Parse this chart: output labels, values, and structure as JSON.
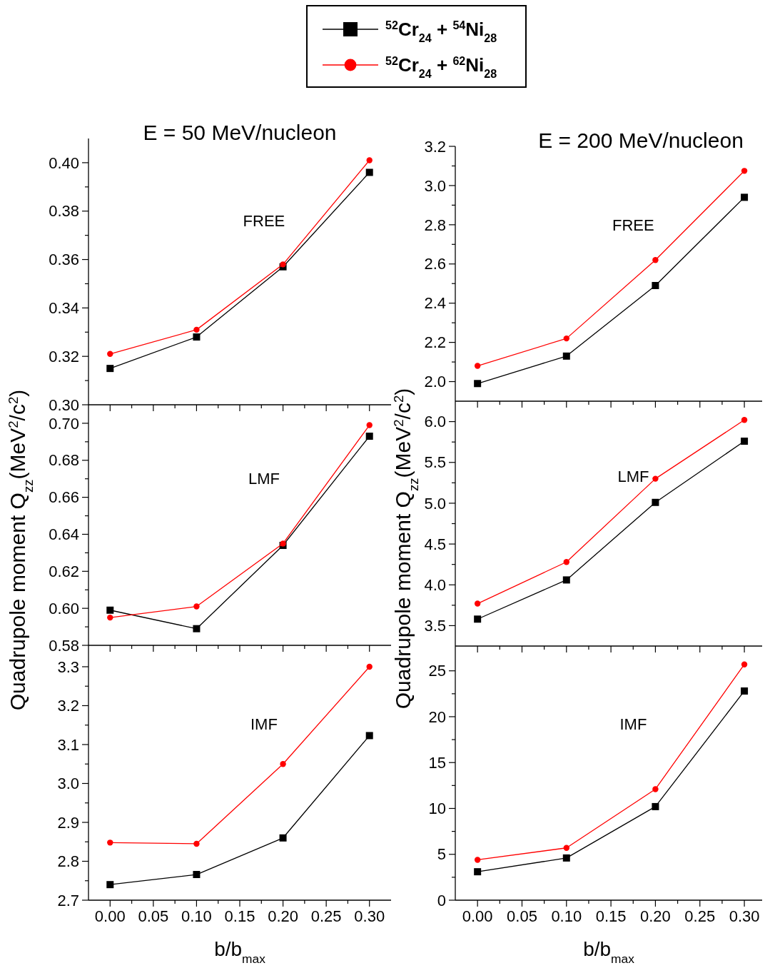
{
  "chart_data": [
    {
      "type": "line",
      "title": "E = 50 MeV/nucleon",
      "annotations": [
        "FREE"
      ],
      "legend": "top",
      "tick_labels": "y",
      "xlim": [
        -0.025,
        0.325
      ],
      "ylim": [
        0.3,
        0.41
      ],
      "x": [
        0,
        0.1,
        0.2,
        0.3
      ],
      "xticks": [
        0,
        {
          "value": 0.025,
          "label": null
        },
        0.05,
        {
          "value": 0.075,
          "label": null
        },
        0.1,
        {
          "value": 0.125,
          "label": null
        },
        0.15,
        {
          "value": 0.175,
          "label": null
        },
        0.2,
        {
          "value": 0.225,
          "label": null
        },
        0.25,
        {
          "value": 0.275,
          "label": null
        },
        0.3
      ],
      "yticks": [
        {
          "value": 0.3,
          "label": "0.30"
        },
        {
          "value": 0.31,
          "label": null
        },
        {
          "value": 0.32,
          "label": "0.32"
        },
        {
          "value": 0.33,
          "label": null
        },
        {
          "value": 0.34,
          "label": "0.34"
        },
        {
          "value": 0.35,
          "label": null
        },
        {
          "value": 0.36,
          "label": "0.36"
        },
        {
          "value": 0.37,
          "label": null
        },
        {
          "value": 0.38,
          "label": "0.38"
        },
        {
          "value": 0.39,
          "label": null
        },
        {
          "value": 0.4,
          "label": "0.40"
        }
      ],
      "series": [
        {
          "name": "$^{52}$Cr$_{24}$ + $^{54}$Ni$_{28}$",
          "color": "#000000",
          "marker": "square",
          "values": [
            0.315,
            0.328,
            0.357,
            0.396
          ]
        },
        {
          "name": "$^{52}$Cr$_{24}$ + $^{62}$Ni$_{28}$",
          "color": "#ff0000",
          "marker": "circle",
          "values": [
            0.321,
            0.331,
            0.358,
            0.401
          ]
        }
      ]
    },
    {
      "type": "line",
      "title": "E = 200 MeV/nucleon",
      "annotations": [
        "FREE"
      ],
      "tick_labels": "y",
      "xlim": [
        -0.025,
        0.32
      ],
      "ylim": [
        1.9,
        3.2
      ],
      "x": [
        0,
        0.1,
        0.2,
        0.3
      ],
      "xticks": [
        0,
        {
          "value": 0.025,
          "label": null
        },
        0.05,
        {
          "value": 0.075,
          "label": null
        },
        0.1,
        {
          "value": 0.125,
          "label": null
        },
        0.15,
        {
          "value": 0.175,
          "label": null
        },
        0.2,
        {
          "value": 0.225,
          "label": null
        },
        0.25,
        {
          "value": 0.275,
          "label": null
        },
        0.3
      ],
      "yticks": [
        {
          "value": 2.0,
          "label": "2.0"
        },
        {
          "value": 2.1,
          "label": null
        },
        {
          "value": 2.2,
          "label": "2.2"
        },
        {
          "value": 2.3,
          "label": null
        },
        {
          "value": 2.4,
          "label": "2.4"
        },
        {
          "value": 2.5,
          "label": null
        },
        {
          "value": 2.6,
          "label": "2.6"
        },
        {
          "value": 2.7,
          "label": null
        },
        {
          "value": 2.8,
          "label": "2.8"
        },
        {
          "value": 2.9,
          "label": null
        },
        {
          "value": 3.0,
          "label": "3.0"
        },
        {
          "value": 3.1,
          "label": null
        },
        {
          "value": 3.2,
          "label": "3.2"
        }
      ],
      "series": [
        {
          "color": "#000000",
          "marker": "square",
          "values": [
            1.99,
            2.13,
            2.49,
            2.94
          ]
        },
        {
          "color": "#ff0000",
          "marker": "circle",
          "values": [
            2.08,
            2.22,
            2.62,
            3.075
          ]
        }
      ]
    },
    {
      "type": "line",
      "ylabel": "Quadrupole moment Q$_{zz}$(MeV$^{2}$/c$^{2}$)",
      "annotations": [
        "LMF"
      ],
      "tick_labels": "y",
      "xlim": [
        -0.025,
        0.325
      ],
      "ylim": [
        0.58,
        0.71
      ],
      "x": [
        0,
        0.1,
        0.2,
        0.3
      ],
      "xticks": [
        0,
        {
          "value": 0.025,
          "label": null
        },
        0.05,
        {
          "value": 0.075,
          "label": null
        },
        0.1,
        {
          "value": 0.125,
          "label": null
        },
        0.15,
        {
          "value": 0.175,
          "label": null
        },
        0.2,
        {
          "value": 0.225,
          "label": null
        },
        0.25,
        {
          "value": 0.275,
          "label": null
        },
        0.3
      ],
      "yticks": [
        {
          "value": 0.58,
          "label": "0.58"
        },
        {
          "value": 0.59,
          "label": null
        },
        {
          "value": 0.6,
          "label": "0.60"
        },
        {
          "value": 0.61,
          "label": null
        },
        {
          "value": 0.62,
          "label": "0.62"
        },
        {
          "value": 0.63,
          "label": null
        },
        {
          "value": 0.64,
          "label": "0.64"
        },
        {
          "value": 0.65,
          "label": null
        },
        {
          "value": 0.66,
          "label": "0.66"
        },
        {
          "value": 0.67,
          "label": null
        },
        {
          "value": 0.68,
          "label": "0.68"
        },
        {
          "value": 0.69,
          "label": null
        },
        {
          "value": 0.7,
          "label": "0.70"
        }
      ],
      "series": [
        {
          "color": "#000000",
          "marker": "square",
          "values": [
            0.599,
            0.589,
            0.634,
            0.693
          ]
        },
        {
          "color": "#ff0000",
          "marker": "circle",
          "values": [
            0.595,
            0.601,
            0.635,
            0.699
          ]
        }
      ]
    },
    {
      "type": "line",
      "ylabel": "Quadrupole moment Q$_{zz}$(MeV$^{2}$/c$^{2}$)",
      "annotations": [
        "LMF"
      ],
      "tick_labels": "y",
      "xlim": [
        -0.025,
        0.32
      ],
      "ylim": [
        3.25,
        6.25
      ],
      "x": [
        0,
        0.1,
        0.2,
        0.3
      ],
      "xticks": [
        0,
        {
          "value": 0.025,
          "label": null
        },
        0.05,
        {
          "value": 0.075,
          "label": null
        },
        0.1,
        {
          "value": 0.125,
          "label": null
        },
        0.15,
        {
          "value": 0.175,
          "label": null
        },
        0.2,
        {
          "value": 0.225,
          "label": null
        },
        0.25,
        {
          "value": 0.275,
          "label": null
        },
        0.3
      ],
      "yticks": [
        {
          "value": 3.5,
          "label": "3.5"
        },
        {
          "value": 3.75,
          "label": null
        },
        {
          "value": 4.0,
          "label": "4.0"
        },
        {
          "value": 4.25,
          "label": null
        },
        {
          "value": 4.5,
          "label": "4.5"
        },
        {
          "value": 4.75,
          "label": null
        },
        {
          "value": 5.0,
          "label": "5.0"
        },
        {
          "value": 5.25,
          "label": null
        },
        {
          "value": 5.5,
          "label": "5.5"
        },
        {
          "value": 5.75,
          "label": null
        },
        {
          "value": 6.0,
          "label": "6.0"
        }
      ],
      "series": [
        {
          "color": "#000000",
          "marker": "square",
          "values": [
            3.58,
            4.06,
            5.01,
            5.76
          ]
        },
        {
          "color": "#ff0000",
          "marker": "circle",
          "values": [
            3.77,
            4.28,
            5.3,
            6.02
          ]
        }
      ]
    },
    {
      "type": "line",
      "xlabel": "b/b$_{max}$",
      "annotations": [
        "IMF"
      ],
      "xlim": [
        -0.025,
        0.325
      ],
      "ylim": [
        2.7,
        3.355
      ],
      "x": [
        0,
        0.1,
        0.2,
        0.3
      ],
      "xticks": [
        {
          "value": 0,
          "label": "0.00"
        },
        {
          "value": 0.025,
          "label": null
        },
        {
          "value": 0.05,
          "label": "0.05"
        },
        {
          "value": 0.075,
          "label": null
        },
        {
          "value": 0.1,
          "label": "0.10"
        },
        {
          "value": 0.125,
          "label": null
        },
        {
          "value": 0.15,
          "label": "0.15"
        },
        {
          "value": 0.175,
          "label": null
        },
        {
          "value": 0.2,
          "label": "0.20"
        },
        {
          "value": 0.225,
          "label": null
        },
        {
          "value": 0.25,
          "label": "0.25"
        },
        {
          "value": 0.275,
          "label": null
        },
        {
          "value": 0.3,
          "label": "0.30"
        }
      ],
      "yticks": [
        {
          "value": 2.7,
          "label": "2.7"
        },
        {
          "value": 2.75,
          "label": null
        },
        {
          "value": 2.8,
          "label": "2.8"
        },
        {
          "value": 2.85,
          "label": null
        },
        {
          "value": 2.9,
          "label": "2.9"
        },
        {
          "value": 2.95,
          "label": null
        },
        {
          "value": 3.0,
          "label": "3.0"
        },
        {
          "value": 3.05,
          "label": null
        },
        {
          "value": 3.1,
          "label": "3.1"
        },
        {
          "value": 3.15,
          "label": null
        },
        {
          "value": 3.2,
          "label": "3.2"
        },
        {
          "value": 3.25,
          "label": null
        },
        {
          "value": 3.3,
          "label": "3.3"
        }
      ],
      "series": [
        {
          "color": "#000000",
          "marker": "square",
          "values": [
            2.74,
            2.766,
            2.86,
            3.123
          ]
        },
        {
          "color": "#ff0000",
          "marker": "circle",
          "values": [
            2.848,
            2.845,
            3.05,
            3.3
          ]
        }
      ]
    },
    {
      "type": "line",
      "xlabel": "b/b$_{max}$",
      "annotations": [
        "IMF"
      ],
      "xlim": [
        -0.025,
        0.32
      ],
      "ylim": [
        0,
        27.7
      ],
      "x": [
        0,
        0.1,
        0.2,
        0.3
      ],
      "xticks": [
        {
          "value": 0,
          "label": "0.00"
        },
        {
          "value": 0.025,
          "label": null
        },
        {
          "value": 0.05,
          "label": "0.05"
        },
        {
          "value": 0.075,
          "label": null
        },
        {
          "value": 0.1,
          "label": "0.10"
        },
        {
          "value": 0.125,
          "label": null
        },
        {
          "value": 0.15,
          "label": "0.15"
        },
        {
          "value": 0.175,
          "label": null
        },
        {
          "value": 0.2,
          "label": "0.20"
        },
        {
          "value": 0.225,
          "label": null
        },
        {
          "value": 0.25,
          "label": "0.25"
        },
        {
          "value": 0.275,
          "label": null
        },
        {
          "value": 0.3,
          "label": "0.30"
        }
      ],
      "yticks": [
        0,
        {
          "value": 2.5,
          "label": null
        },
        5,
        {
          "value": 7.5,
          "label": null
        },
        10,
        {
          "value": 12.5,
          "label": null
        },
        15,
        {
          "value": 17.5,
          "label": null
        },
        20,
        {
          "value": 22.5,
          "label": null
        },
        25
      ],
      "series": [
        {
          "color": "#000000",
          "marker": "square",
          "values": [
            3.1,
            4.6,
            10.2,
            22.8
          ]
        },
        {
          "color": "#ff0000",
          "marker": "circle",
          "values": [
            4.4,
            5.7,
            12.1,
            25.7
          ]
        }
      ]
    }
  ]
}
